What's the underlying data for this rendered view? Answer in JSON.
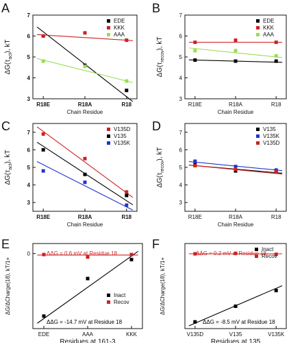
{
  "chart_data": [
    {
      "panel": "A",
      "type": "scatter",
      "categories": [
        "R18E",
        "R18A",
        "R18"
      ],
      "xlabel": "Chain Residue",
      "ylabel": "ΔG(τ_act), kT",
      "ylim": [
        3,
        7
      ],
      "yticks": [
        3,
        4,
        5,
        6,
        7
      ],
      "legend_position": "top-right",
      "series": [
        {
          "name": "EDE",
          "color": "#000000",
          "values": [
            6.0,
            4.6,
            3.4
          ],
          "fit": [
            6.2,
            3.1
          ]
        },
        {
          "name": "KKK",
          "color": "#cc2222",
          "values": [
            6.0,
            6.15,
            5.8
          ],
          "fit": [
            6.05,
            5.8
          ]
        },
        {
          "name": "AAA",
          "color": "#99dd55",
          "values": [
            4.8,
            4.55,
            3.85
          ],
          "fit": [
            4.85,
            3.85
          ]
        }
      ]
    },
    {
      "panel": "B",
      "type": "scatter",
      "categories": [
        "R18E",
        "R18A",
        "R18"
      ],
      "xlabel": "Chain Residue",
      "ylabel": "ΔG(τ_recov), kT",
      "ylim": [
        3,
        7
      ],
      "yticks": [
        3,
        4,
        5,
        6,
        7
      ],
      "legend_position": "top-right",
      "series": [
        {
          "name": "EDE",
          "color": "#000000",
          "values": [
            4.85,
            4.8,
            4.8
          ],
          "fit": [
            4.85,
            4.75
          ]
        },
        {
          "name": "KKK",
          "color": "#cc2222",
          "values": [
            5.7,
            5.8,
            5.7
          ],
          "fit": [
            5.7,
            5.7
          ]
        },
        {
          "name": "AAA",
          "color": "#99dd55",
          "values": [
            5.3,
            5.3,
            5.05
          ],
          "fit": [
            5.4,
            5.0
          ]
        }
      ]
    },
    {
      "panel": "C",
      "type": "scatter",
      "categories": [
        "R18E",
        "R18A",
        "R18"
      ],
      "xlabel": "Chain Residue",
      "ylabel": "ΔG(τ_act), kT",
      "ylim": [
        2.5,
        7.5
      ],
      "yticks": [
        3,
        4,
        5,
        6,
        7
      ],
      "legend_position": "top-right",
      "series": [
        {
          "name": "V135D",
          "color": "#cc2222",
          "values": [
            6.9,
            5.5,
            3.6
          ],
          "fit": [
            7.05,
            3.55
          ]
        },
        {
          "name": "V135",
          "color": "#000000",
          "values": [
            6.0,
            4.6,
            3.4
          ],
          "fit": [
            6.2,
            3.1
          ]
        },
        {
          "name": "V135K",
          "color": "#2233cc",
          "values": [
            4.8,
            4.15,
            2.85
          ],
          "fit": [
            5.15,
            2.75
          ]
        }
      ]
    },
    {
      "panel": "D",
      "type": "scatter",
      "categories": [
        "R18E",
        "R18A",
        "R18"
      ],
      "xlabel": "Chain Residue",
      "ylabel": "ΔG(τ_recov), kT",
      "ylim": [
        2.5,
        7.5
      ],
      "yticks": [
        3,
        4,
        5,
        6,
        7
      ],
      "legend_position": "top-right",
      "series": [
        {
          "name": "V135",
          "color": "#000000",
          "values": [
            5.15,
            4.8,
            4.75
          ],
          "fit": [
            5.1,
            4.7
          ]
        },
        {
          "name": "V135K",
          "color": "#2233cc",
          "values": [
            5.35,
            5.05,
            4.85
          ],
          "fit": [
            5.3,
            4.85
          ]
        },
        {
          "name": "V135D",
          "color": "#cc2222",
          "values": [
            5.1,
            4.9,
            4.75
          ],
          "fit": [
            5.1,
            4.65
          ]
        }
      ]
    },
    {
      "panel": "E",
      "type": "scatter",
      "categories": [
        "EDE",
        "AAA",
        "KKK"
      ],
      "xlabel": "Residues at 161-3",
      "ylabel": "ΔG/ΔCharge(18), kT/1+",
      "ylim": [
        -1.5,
        0.2
      ],
      "yticks": [
        0
      ],
      "legend_position": "center-right",
      "annotations": [
        {
          "text": "ΔΔG = 0.6 mV at Residue 18",
          "color": "#cc2222"
        },
        {
          "text": "ΔΔG = -14.7 mV at Residue 18",
          "color": "#000000"
        }
      ],
      "series": [
        {
          "name": "Inact",
          "color": "#000000",
          "values": [
            -1.25,
            -0.5,
            -0.12
          ],
          "fit": [
            -1.3,
            -0.05
          ]
        },
        {
          "name": "Recov",
          "color": "#cc2222",
          "values": [
            -0.02,
            -0.07,
            -0.02
          ],
          "fit": [
            -0.03,
            -0.03
          ]
        }
      ]
    },
    {
      "panel": "F",
      "type": "scatter",
      "categories": [
        "V135D",
        "V135",
        "V135K"
      ],
      "xlabel": "Residues at 135",
      "ylabel": "ΔG/ΔCharge(18), kT/1+",
      "ylim": [
        -1.8,
        0.1
      ],
      "yticks": [],
      "legend_position": "top-right",
      "annotations": [
        {
          "text": "ΔΔG = 0.2 mV at Residue 18",
          "color": "#cc2222"
        },
        {
          "text": "ΔΔG = -8.5 mV at Residue 18",
          "color": "#000000"
        }
      ],
      "series": [
        {
          "name": "Inact",
          "color": "#000000",
          "values": [
            -1.65,
            -1.3,
            -0.95
          ],
          "fit": [
            -1.68,
            -0.9
          ]
        },
        {
          "name": "Recov",
          "color": "#cc2222",
          "values": [
            -0.13,
            -0.12,
            -0.14
          ],
          "fit": [
            -0.13,
            -0.13
          ]
        }
      ]
    }
  ]
}
